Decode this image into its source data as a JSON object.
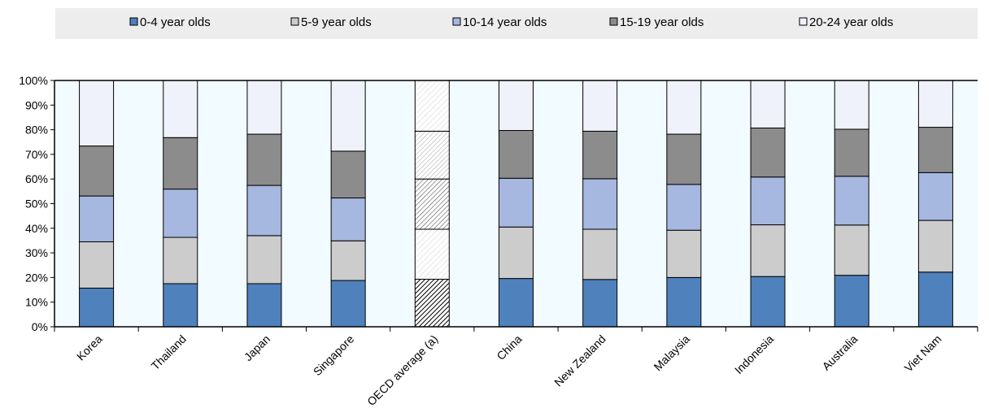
{
  "chart_data": {
    "type": "bar",
    "stacked": true,
    "categories": [
      "Korea",
      "Thailand",
      "Japan",
      "Singapore",
      "OECD average (a)",
      "China",
      "New Zealand",
      "Malaysia",
      "Indonesia",
      "Australia",
      "Viet Nam"
    ],
    "series": [
      {
        "name": "0-4 year olds",
        "values": [
          15.7,
          17.5,
          17.5,
          18.8,
          19.3,
          19.6,
          19.2,
          20.0,
          20.4,
          20.9,
          22.2
        ],
        "color": "#4f81bd"
      },
      {
        "name": "5-9 year olds",
        "values": [
          18.8,
          18.8,
          19.5,
          16.1,
          20.3,
          20.9,
          20.4,
          19.2,
          21.0,
          20.4,
          21.0
        ],
        "color": "#cccccc"
      },
      {
        "name": "10-14 year olds",
        "values": [
          18.6,
          19.6,
          20.4,
          17.4,
          20.4,
          19.8,
          20.5,
          18.6,
          19.4,
          19.8,
          19.4
        ],
        "color": "#a6b7e0"
      },
      {
        "name": "15-19 year olds",
        "values": [
          20.3,
          20.9,
          20.8,
          19.0,
          19.4,
          19.4,
          19.3,
          20.4,
          19.9,
          19.1,
          18.4
        ],
        "color": "#8c8c8c"
      },
      {
        "name": "20-24 year olds",
        "values": [
          26.6,
          23.2,
          21.8,
          28.7,
          20.6,
          20.3,
          20.6,
          21.8,
          19.3,
          19.8,
          19.0
        ],
        "color": "#eff1fb"
      }
    ],
    "hatched_category": "OECD average (a)",
    "y_axis": {
      "min": 0,
      "max": 100,
      "step": 10,
      "tick_format": "percent"
    },
    "grid": false,
    "legend": {
      "position": "top"
    },
    "title": "",
    "xlabel": "",
    "ylabel": ""
  }
}
